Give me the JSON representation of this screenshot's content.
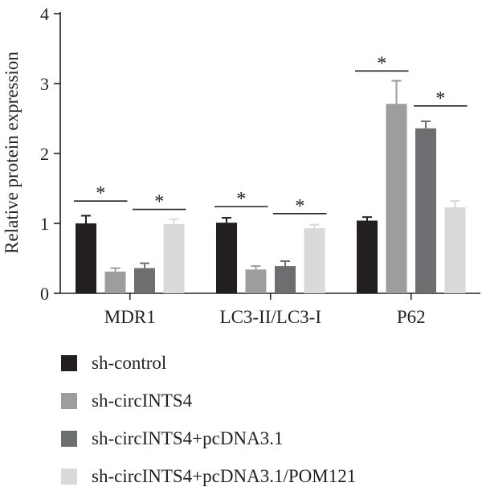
{
  "chart_data": {
    "type": "bar",
    "title": "",
    "xlabel": "",
    "ylabel": "Relative protein expression",
    "ylim": [
      0,
      4
    ],
    "yticks": [
      "0",
      "1",
      "2",
      "3",
      "4"
    ],
    "categories": [
      "MDR1",
      "LC3-II/LC3-I",
      "P62"
    ],
    "series": [
      {
        "name": "sh-control",
        "color": "#231f20",
        "values": [
          1.0,
          1.01,
          1.04
        ],
        "errors": [
          0.11,
          0.07,
          0.05
        ]
      },
      {
        "name": "sh-circINTS4",
        "color": "#9d9d9f",
        "values": [
          0.31,
          0.34,
          2.71
        ],
        "errors": [
          0.05,
          0.05,
          0.33
        ]
      },
      {
        "name": "sh-circINTS4+pcDNA3.1",
        "color": "#6d6e70",
        "values": [
          0.36,
          0.39,
          2.36
        ],
        "errors": [
          0.07,
          0.07,
          0.1
        ]
      },
      {
        "name": "sh-circINTS4+pcDNA3.1/POM121",
        "color": "#d9d9d9",
        "values": [
          0.99,
          0.93,
          1.23
        ],
        "errors": [
          0.07,
          0.05,
          0.09
        ]
      }
    ],
    "significance": [
      {
        "category": 0,
        "from": 0,
        "to": 1,
        "label": "*",
        "y": 1.32
      },
      {
        "category": 0,
        "from": 2,
        "to": 3,
        "label": "*",
        "y": 1.2
      },
      {
        "category": 1,
        "from": 0,
        "to": 1,
        "label": "*",
        "y": 1.24
      },
      {
        "category": 1,
        "from": 2,
        "to": 3,
        "label": "*",
        "y": 1.14
      },
      {
        "category": 2,
        "from": 0,
        "to": 1,
        "label": "*",
        "y": 3.18
      },
      {
        "category": 2,
        "from": 2,
        "to": 3,
        "label": "*",
        "y": 2.68
      }
    ],
    "grid": false,
    "legend_position": "bottom"
  }
}
